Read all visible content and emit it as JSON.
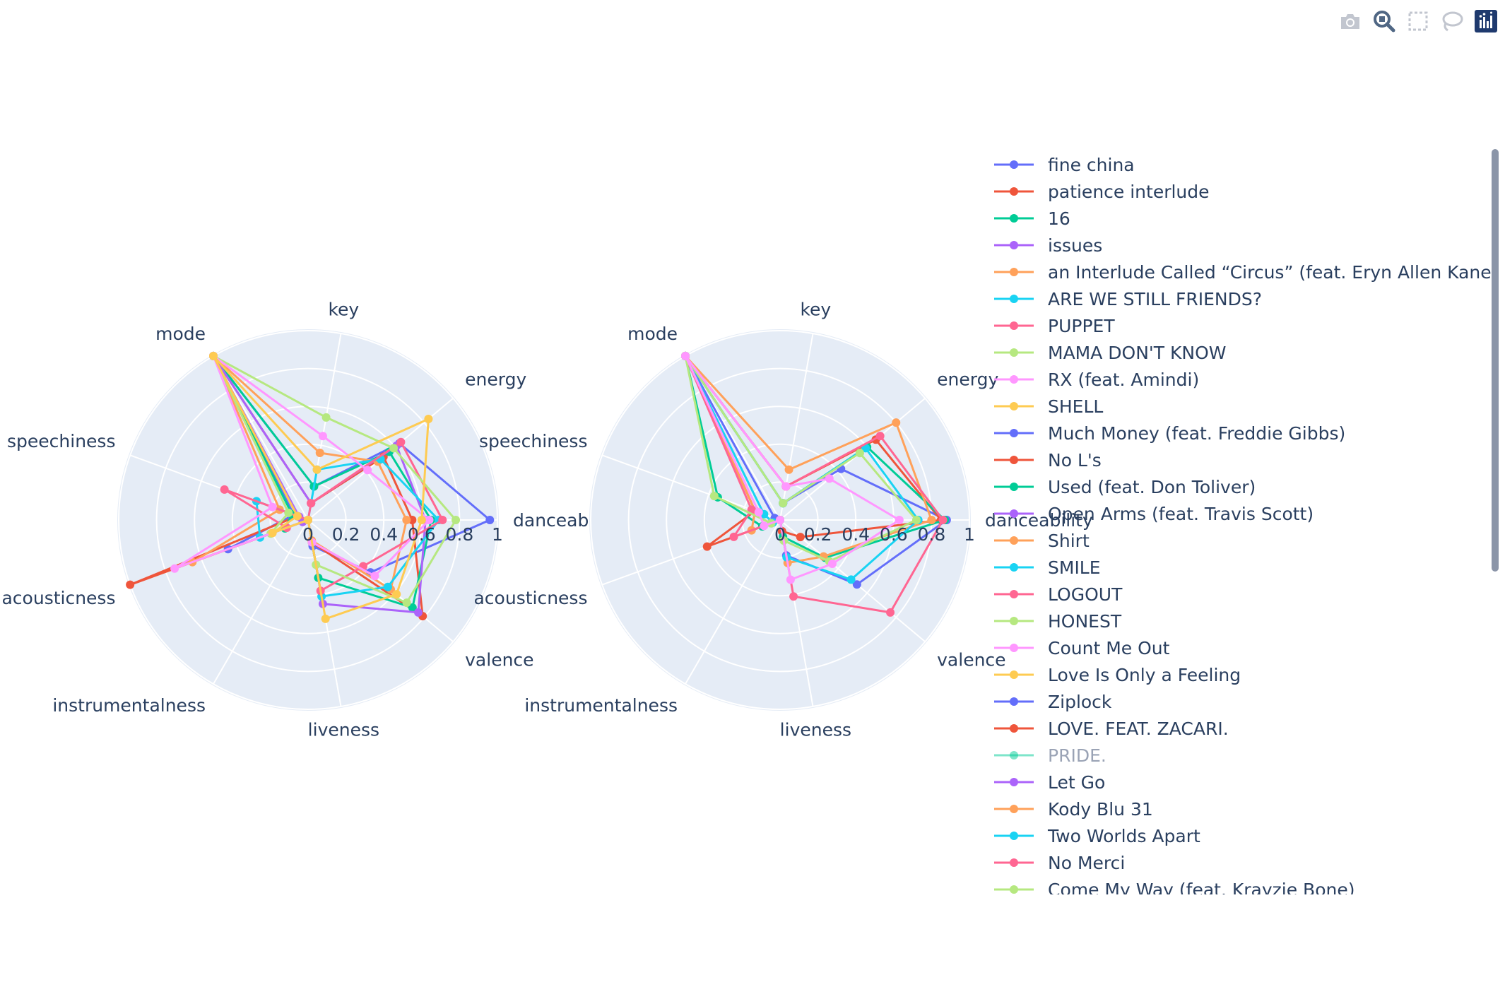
{
  "modebar": {
    "buttons": [
      {
        "name": "camera-icon",
        "tooltip": "Download plot as a png"
      },
      {
        "name": "zoom-icon",
        "tooltip": "Zoom"
      },
      {
        "name": "box-select-icon",
        "tooltip": "Box Select"
      },
      {
        "name": "lasso-select-icon",
        "tooltip": "Lasso Select"
      },
      {
        "name": "plotly-logo-icon",
        "tooltip": "Produced with Plotly"
      }
    ]
  },
  "chart_data": [
    {
      "type": "radar",
      "axes": [
        "danceability",
        "energy",
        "key",
        "mode",
        "speechiness",
        "acousticness",
        "instrumentalness",
        "liveness",
        "valence"
      ],
      "radial_ticks": [
        "0",
        "0.2",
        "0.4",
        "0.6",
        "0.8",
        "1"
      ],
      "radial_range": [
        0,
        1
      ],
      "grid": true,
      "series": [
        {
          "name": "fine china",
          "values": [
            0.96,
            0.63,
            0.18,
            1.0,
            0.08,
            0.45,
            0.0,
            0.14,
            0.43
          ],
          "color": "#636efa"
        },
        {
          "name": "patience interlude",
          "values": [
            0.55,
            0.52,
            0.09,
            1.0,
            0.06,
            1.0,
            0.0,
            0.12,
            0.79
          ],
          "color": "#EF553B"
        },
        {
          "name": "16",
          "values": [
            0.65,
            0.56,
            0.18,
            1.0,
            0.09,
            0.13,
            0.0,
            0.31,
            0.72
          ],
          "color": "#00cc96"
        },
        {
          "name": "issues",
          "values": [
            0.62,
            0.61,
            0.09,
            1.0,
            0.05,
            0.03,
            0.0,
            0.45,
            0.76
          ],
          "color": "#ab63fa"
        },
        {
          "name": "an Interlude Called “Circus” (feat. Eryn Allen Kane)",
          "values": [
            0.52,
            0.48,
            0.36,
            1.0,
            0.16,
            0.65,
            0.0,
            0.11,
            0.57
          ],
          "color": "#FFA15A"
        },
        {
          "name": "ARE WE STILL FRIENDS?",
          "values": [
            0.69,
            0.5,
            0.27,
            0.0,
            0.29,
            0.27,
            0.0,
            0.41,
            0.55
          ],
          "color": "#19d3f3"
        },
        {
          "name": "PUPPET",
          "values": [
            0.71,
            0.64,
            0.09,
            0.0,
            0.47,
            0.12,
            0.0,
            0.38,
            0.38
          ],
          "color": "#FF6692"
        },
        {
          "name": "MAMA DON'T KNOW",
          "values": [
            0.78,
            0.59,
            0.55,
            1.0,
            0.11,
            0.21,
            0.0,
            0.24,
            0.68
          ],
          "color": "#B6E880"
        },
        {
          "name": "RX (feat. Amindi)",
          "values": [
            0.64,
            0.41,
            0.45,
            1.0,
            0.2,
            0.75,
            0.0,
            0.12,
            0.46
          ],
          "color": "#FF97FF"
        },
        {
          "name": "SHELL",
          "values": [
            0.6,
            0.83,
            0.27,
            1.0,
            0.06,
            0.2,
            0.0,
            0.53,
            0.61
          ],
          "color": "#FECB52"
        }
      ]
    },
    {
      "type": "radar",
      "axes": [
        "danceability",
        "energy",
        "key",
        "mode",
        "speechiness",
        "acousticness",
        "instrumentalness",
        "liveness",
        "valence"
      ],
      "radial_ticks": [
        "0",
        "0.2",
        "0.4",
        "0.6",
        "0.8",
        "1"
      ],
      "radial_range": [
        0,
        1
      ],
      "grid": true,
      "series": [
        {
          "name": "Much Money (feat. Freddie Gibbs)",
          "values": [
            0.88,
            0.42,
            0.09,
            1.0,
            0.03,
            0.05,
            0.0,
            0.19,
            0.53
          ],
          "color": "#636efa"
        },
        {
          "name": "No L's",
          "values": [
            0.85,
            0.66,
            0.18,
            1.0,
            0.14,
            0.41,
            0.0,
            0.06,
            0.14
          ],
          "color": "#EF553B"
        },
        {
          "name": "Used (feat. Don Toliver)",
          "values": [
            0.87,
            0.6,
            0.09,
            1.0,
            0.35,
            0.1,
            0.0,
            0.09,
            0.31
          ],
          "color": "#00cc96"
        },
        {
          "name": "Shirt",
          "values": [
            0.8,
            0.8,
            0.27,
            1.0,
            0.14,
            0.16,
            0.0,
            0.23,
            0.3
          ],
          "color": "#FFA15A"
        },
        {
          "name": "SMILE",
          "values": [
            0.73,
            0.59,
            0.09,
            1.0,
            0.09,
            0.04,
            0.0,
            0.2,
            0.49
          ],
          "color": "#19d3f3"
        },
        {
          "name": "LOGOUT",
          "values": [
            0.86,
            0.69,
            0.18,
            1.0,
            0.16,
            0.26,
            0.0,
            0.41,
            0.76
          ],
          "color": "#FF6692"
        },
        {
          "name": "HONEST",
          "values": [
            0.72,
            0.55,
            0.09,
            1.0,
            0.37,
            0.05,
            0.0,
            0.11,
            0.34
          ],
          "color": "#B6E880"
        },
        {
          "name": "Count Me Out",
          "values": [
            0.63,
            0.34,
            0.18,
            1.0,
            0.12,
            0.09,
            0.0,
            0.32,
            0.36
          ],
          "color": "#FF97FF"
        }
      ]
    }
  ],
  "legend": {
    "items": [
      {
        "label": "fine china",
        "color": "#636efa",
        "visible": true
      },
      {
        "label": "patience interlude",
        "color": "#EF553B",
        "visible": true
      },
      {
        "label": "16",
        "color": "#00cc96",
        "visible": true
      },
      {
        "label": "issues",
        "color": "#ab63fa",
        "visible": true
      },
      {
        "label": "an Interlude Called “Circus” (feat. Eryn Allen Kane)",
        "color": "#FFA15A",
        "visible": true
      },
      {
        "label": "ARE WE STILL FRIENDS?",
        "color": "#19d3f3",
        "visible": true
      },
      {
        "label": "PUPPET",
        "color": "#FF6692",
        "visible": true
      },
      {
        "label": "MAMA DON'T KNOW",
        "color": "#B6E880",
        "visible": true
      },
      {
        "label": "RX (feat. Amindi)",
        "color": "#FF97FF",
        "visible": true
      },
      {
        "label": "SHELL",
        "color": "#FECB52",
        "visible": true
      },
      {
        "label": "Much Money (feat. Freddie Gibbs)",
        "color": "#636efa",
        "visible": true
      },
      {
        "label": "No L's",
        "color": "#EF553B",
        "visible": true
      },
      {
        "label": "Used (feat. Don Toliver)",
        "color": "#00cc96",
        "visible": true
      },
      {
        "label": "Open Arms (feat. Travis Scott)",
        "color": "#ab63fa",
        "visible": true
      },
      {
        "label": "Shirt",
        "color": "#FFA15A",
        "visible": true
      },
      {
        "label": "SMILE",
        "color": "#19d3f3",
        "visible": true
      },
      {
        "label": "LOGOUT",
        "color": "#FF6692",
        "visible": true
      },
      {
        "label": "HONEST",
        "color": "#B6E880",
        "visible": true
      },
      {
        "label": "Count Me Out",
        "color": "#FF97FF",
        "visible": true
      },
      {
        "label": "Love Is Only a Feeling",
        "color": "#FECB52",
        "visible": true
      },
      {
        "label": "Ziplock",
        "color": "#636efa",
        "visible": true
      },
      {
        "label": "LOVE. FEAT. ZACARI.",
        "color": "#EF553B",
        "visible": true
      },
      {
        "label": "PRIDE.",
        "color": "#00cc96",
        "visible": false
      },
      {
        "label": "Let Go",
        "color": "#ab63fa",
        "visible": true
      },
      {
        "label": "Kody Blu 31",
        "color": "#FFA15A",
        "visible": true
      },
      {
        "label": "Two Worlds Apart",
        "color": "#19d3f3",
        "visible": true
      },
      {
        "label": "No Merci",
        "color": "#FF6692",
        "visible": true
      },
      {
        "label": "Come My Way (feat. Krayzie Bone)",
        "color": "#B6E880",
        "visible": true
      }
    ]
  }
}
